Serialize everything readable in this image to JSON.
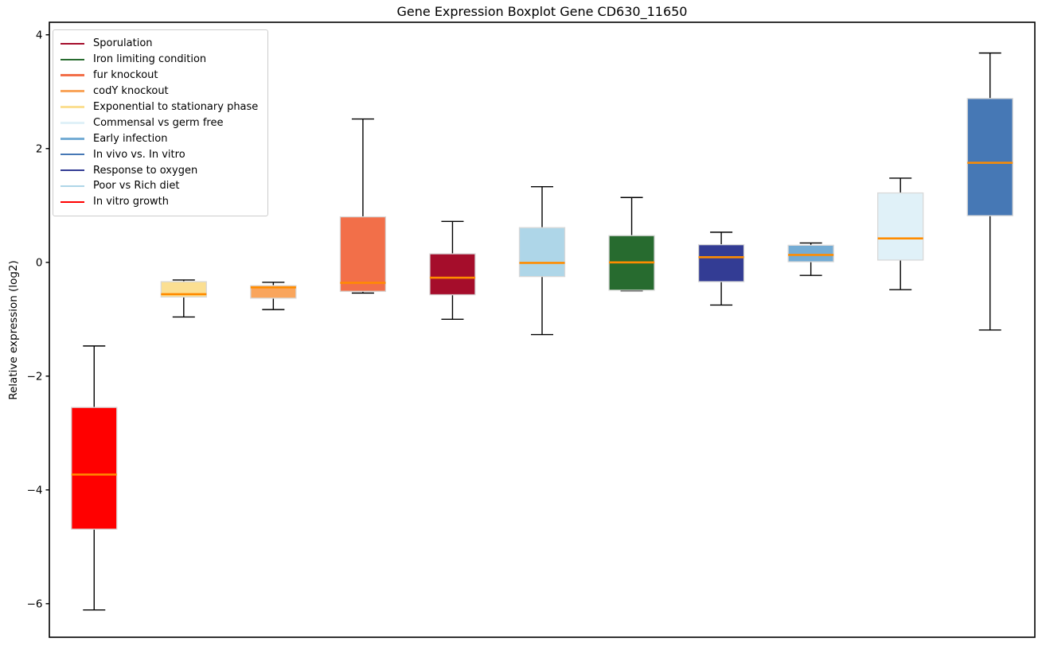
{
  "chart_data": {
    "type": "boxplot",
    "title": "Gene Expression Boxplot Gene CD630_11650",
    "xlabel": "",
    "ylabel": "Relative expression (log2)",
    "ylim": [
      -6.59,
      4.22
    ],
    "yticks": [
      4,
      2,
      0,
      -2,
      -4,
      -6
    ],
    "x_tick_labels": [],
    "grid": false,
    "legend_position": "upper-left",
    "styles": {
      "background": "#ffffff",
      "spine_color": "#000000",
      "whisker_color": "#000000",
      "box_edge_color": "#d8d8d8",
      "median_color": "#ff8c00",
      "legend_border_color": "#cccccc"
    },
    "boxes": [
      {
        "label": "In vitro growth",
        "color": "#ff0000",
        "whisker_low": -6.11,
        "q1": -4.69,
        "median": -3.73,
        "q3": -2.55,
        "whisker_high": -1.47
      },
      {
        "label": "Exponential to stationary phase",
        "color": "#fbdf92",
        "whisker_low": -0.96,
        "q1": -0.61,
        "median": -0.56,
        "q3": -0.34,
        "whisker_high": -0.31
      },
      {
        "label": "codY knockout",
        "color": "#f9a55c",
        "whisker_low": -0.83,
        "q1": -0.63,
        "median": -0.44,
        "q3": -0.41,
        "whisker_high": -0.35
      },
      {
        "label": "fur knockout",
        "color": "#f26f49",
        "whisker_low": -0.54,
        "q1": -0.51,
        "median": -0.36,
        "q3": 0.8,
        "whisker_high": 2.52
      },
      {
        "label": "Sporulation",
        "color": "#a50d2b",
        "whisker_low": -1.0,
        "q1": -0.57,
        "median": -0.27,
        "q3": 0.15,
        "whisker_high": 0.72
      },
      {
        "label": "Poor vs Rich diet",
        "color": "#aed6e8",
        "whisker_low": -1.27,
        "q1": -0.25,
        "median": -0.01,
        "q3": 0.61,
        "whisker_high": 1.33
      },
      {
        "label": "Iron limiting condition",
        "color": "#276b2f",
        "whisker_low": -0.5,
        "q1": -0.49,
        "median": 0.0,
        "q3": 0.47,
        "whisker_high": 1.14
      },
      {
        "label": "Response to oxygen",
        "color": "#333c94",
        "whisker_low": -0.75,
        "q1": -0.34,
        "median": 0.09,
        "q3": 0.31,
        "whisker_high": 0.53
      },
      {
        "label": "Early infection",
        "color": "#74acd4",
        "whisker_low": -0.23,
        "q1": 0.01,
        "median": 0.13,
        "q3": 0.3,
        "whisker_high": 0.34
      },
      {
        "label": "Commensal vs germ free",
        "color": "#e0f1f8",
        "whisker_low": -0.48,
        "q1": 0.04,
        "median": 0.42,
        "q3": 1.22,
        "whisker_high": 1.48
      },
      {
        "label": "In vivo vs. In vitro",
        "color": "#4678b5",
        "whisker_low": -1.19,
        "q1": 0.82,
        "median": 1.75,
        "q3": 2.88,
        "whisker_high": 3.68
      }
    ],
    "legend": [
      {
        "label": "Sporulation",
        "color": "#a50d2b"
      },
      {
        "label": "Iron limiting condition",
        "color": "#276b2f"
      },
      {
        "label": "fur knockout",
        "color": "#f26f49"
      },
      {
        "label": "codY knockout",
        "color": "#f9a55c"
      },
      {
        "label": "Exponential to stationary phase",
        "color": "#fbdf92"
      },
      {
        "label": "Commensal vs germ free",
        "color": "#e0f1f8"
      },
      {
        "label": "Early infection",
        "color": "#74acd4"
      },
      {
        "label": "In vivo vs. In vitro",
        "color": "#4678b5"
      },
      {
        "label": "Response to oxygen",
        "color": "#333c94"
      },
      {
        "label": "Poor vs Rich diet",
        "color": "#aed6e8"
      },
      {
        "label": "In vitro growth",
        "color": "#ff0000"
      }
    ]
  }
}
